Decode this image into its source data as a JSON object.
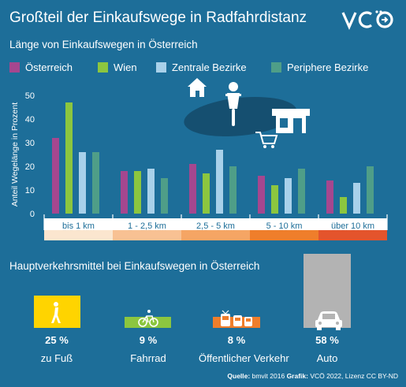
{
  "header": {
    "title": "Großteil der Einkaufswege in Radfahrdistanz",
    "logo_text": "VCÖ"
  },
  "chart_data": [
    {
      "type": "bar",
      "title": "Länge von Einkaufswegen in Österreich",
      "ylabel": "Anteil Wegelänge in Prozent",
      "xlabel": "",
      "ylim": [
        0,
        50
      ],
      "yticks": [
        0,
        10,
        20,
        30,
        40,
        50
      ],
      "grid": false,
      "legend_position": "top",
      "categories": [
        "bis 1 km",
        "1 - 2,5 km",
        "2,5 - 5 km",
        "5 - 10 km",
        "über 10 km"
      ],
      "category_colors": [
        "#fbe6cf",
        "#f8c193",
        "#f5a564",
        "#ef7e2b",
        "#e4542c"
      ],
      "series": [
        {
          "name": "Österreich",
          "color": "#a5478f",
          "values": [
            32,
            18,
            21,
            16,
            14
          ]
        },
        {
          "name": "Wien",
          "color": "#8cc63f",
          "values": [
            47,
            18,
            17,
            12,
            7
          ]
        },
        {
          "name": "Zentrale Bezirke",
          "color": "#a9d1ea",
          "values": [
            26,
            19,
            27,
            15,
            13
          ]
        },
        {
          "name": "Periphere Bezirke",
          "color": "#4f9e88",
          "values": [
            26,
            15,
            20,
            19,
            20
          ]
        }
      ]
    },
    {
      "type": "bar",
      "title": "Hauptverkehrsmittel bei Einkaufswegen in Österreich",
      "categories": [
        "zu Fuß",
        "Fahrrad",
        "Öffentlicher Verkehr",
        "Auto"
      ],
      "values": [
        25,
        9,
        8,
        58
      ],
      "value_labels": [
        "25 %",
        "9 %",
        "8 %",
        "58 %"
      ],
      "colors": [
        "#ffd400",
        "#8cc63f",
        "#ef7e2b",
        "#b3b3b3"
      ],
      "icons": [
        "pedestrian-icon",
        "bicycle-icon",
        "bus-tram-icon",
        "car-icon"
      ]
    }
  ],
  "source": {
    "label_source": "Quelle:",
    "source_text": "bmvit 2016",
    "label_graphic": "Grafik:",
    "graphic_text": "VCÖ 2022, Lizenz CC BY-ND"
  }
}
